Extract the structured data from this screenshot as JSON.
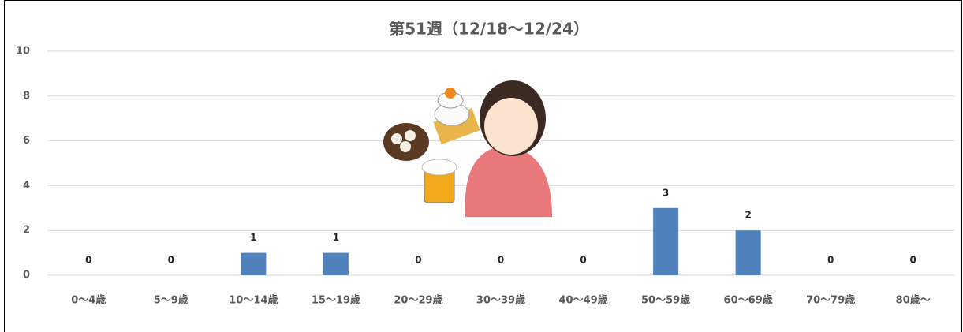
{
  "chart_data": {
    "type": "bar",
    "title": "第51週（12/18～12/24）",
    "categories": [
      "0～4歳",
      "5～9歳",
      "10～14歳",
      "15～19歳",
      "20～29歳",
      "30～39歳",
      "40～49歳",
      "50～59歳",
      "60～69歳",
      "70～79歳",
      "80歳～"
    ],
    "values": [
      0,
      0,
      1,
      1,
      0,
      0,
      0,
      3,
      2,
      0,
      0
    ],
    "color": "#4f81bd",
    "ylim": [
      0,
      10
    ],
    "yticks": [
      0,
      2,
      4,
      6,
      8,
      10
    ],
    "grid": true
  }
}
